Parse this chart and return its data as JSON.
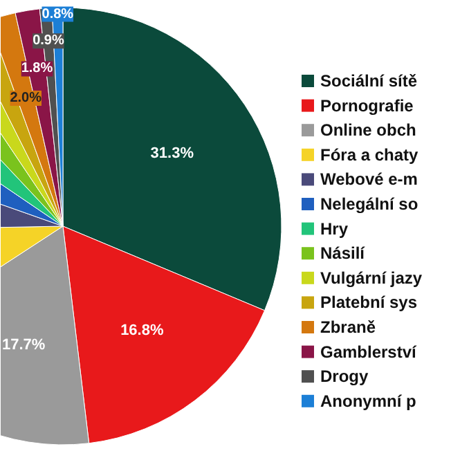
{
  "chart_data": {
    "type": "pie",
    "categories": [
      "Sociální sítě",
      "Pornografie",
      "Online obch",
      "Fóra a chaty",
      "Webové e-m",
      "Nelegální so",
      "Hry",
      "Násilí",
      "Vulgární jazy",
      "Platební sys",
      "Zbraně",
      "Gamblerství",
      "Drogy",
      "Anonymní p"
    ],
    "values": [
      31.3,
      16.8,
      17.7,
      8.9,
      5.7,
      4.1,
      3.5,
      2.6,
      2.0,
      1.9,
      2.0,
      1.8,
      0.9,
      0.8
    ],
    "colors": [
      "#0b4a3b",
      "#e8191b",
      "#9a9a9a",
      "#f5d327",
      "#4a4a7a",
      "#1f5fbf",
      "#22c47a",
      "#7ac31d",
      "#c9d81c",
      "#c8a50f",
      "#d4780f",
      "#8a1547",
      "#505050",
      "#1c7fd6"
    ],
    "value_labels": [
      "31.3%",
      "16.8%",
      "17.7%",
      null,
      null,
      null,
      null,
      null,
      null,
      null,
      "2.0%",
      "1.8%",
      "0.9%",
      "0.8%"
    ],
    "legend": "right"
  }
}
